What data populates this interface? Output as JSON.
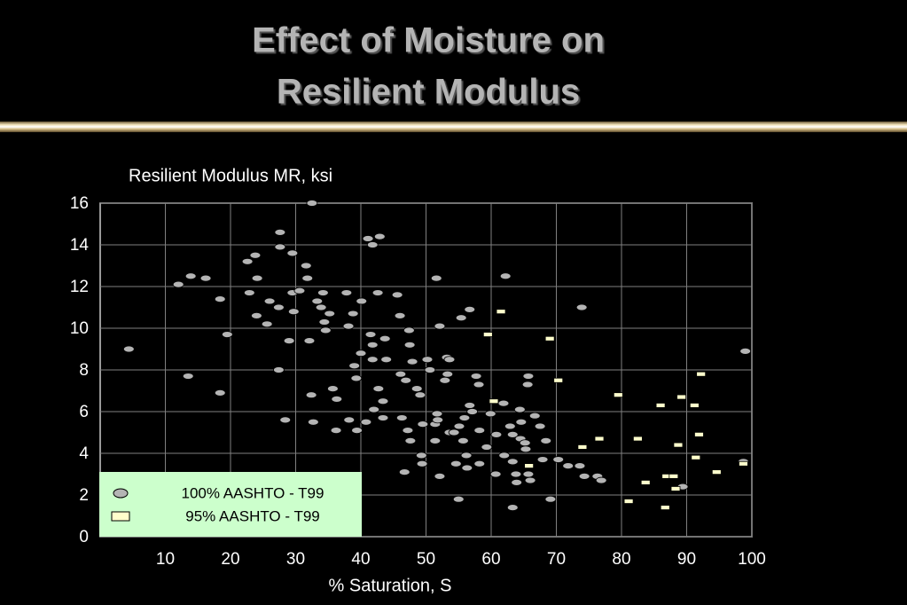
{
  "slide": {
    "title": [
      "Effect of Moisture on",
      "Resilient Modulus"
    ]
  },
  "chart_data": {
    "type": "scatter",
    "ylabel": "Resilient Modulus MR, ksi",
    "xlabel": "% Saturation, S",
    "xlim": [
      0,
      100
    ],
    "xticks": [
      10,
      20,
      30,
      40,
      50,
      60,
      70,
      80,
      90,
      100
    ],
    "ylim": [
      0,
      16
    ],
    "yticks": [
      0,
      2,
      4,
      6,
      8,
      10,
      12,
      14,
      16
    ],
    "grid": true,
    "legend": "lower left",
    "series": [
      {
        "name": "100% AASHTO - T99",
        "color": "#b4b4b4",
        "marker": "ellipse",
        "x": [
          4.4,
          12.0,
          13.9,
          16.2,
          13.5,
          18.4,
          18.4,
          19.5,
          22.6,
          23.8,
          24.1,
          22.9,
          24.0,
          25.6,
          26.0,
          27.4,
          27.6,
          27.6,
          29.5,
          27.4,
          28.4,
          29.0,
          29.5,
          29.7,
          30.6,
          31.6,
          31.8,
          32.5,
          32.1,
          32.4,
          32.7,
          33.3,
          33.9,
          34.2,
          34.4,
          34.6,
          35.2,
          35.7,
          36.3,
          36.2,
          37.8,
          38.1,
          38.2,
          38.8,
          39.0,
          39.3,
          39.4,
          40.1,
          40.0,
          40.8,
          41.1,
          41.8,
          42.9,
          41.5,
          41.8,
          41.8,
          42.0,
          42.6,
          42.7,
          43.4,
          43.7,
          43.9,
          43.4,
          45.6,
          46.0,
          46.1,
          46.3,
          46.7,
          46.9,
          47.2,
          47.4,
          47.5,
          47.6,
          47.9,
          48.6,
          49.1,
          49.5,
          49.3,
          49.4,
          50.2,
          50.6,
          51.4,
          51.4,
          51.6,
          51.7,
          51.8,
          52.1,
          52.1,
          52.9,
          53.2,
          53.3,
          53.6,
          53.6,
          54.3,
          54.6,
          55.0,
          55.1,
          55.4,
          55.7,
          55.9,
          56.2,
          56.3,
          56.7,
          56.7,
          57.1,
          57.7,
          58.1,
          58.2,
          58.2,
          59.3,
          59.9,
          60.7,
          60.8,
          62.2,
          61.9,
          62.0,
          62.9,
          63.3,
          63.3,
          63.3,
          63.8,
          63.9,
          64.4,
          64.5,
          64.6,
          65.2,
          65.3,
          65.6,
          65.7,
          65.7,
          66.0,
          66.7,
          67.5,
          67.9,
          68.4,
          69.1,
          70.3,
          71.8,
          73.6,
          73.9,
          74.3,
          76.3,
          76.9,
          89.4,
          98.7,
          99.0
        ],
        "values": [
          9.0,
          12.1,
          12.5,
          12.4,
          7.7,
          11.4,
          6.9,
          9.7,
          13.2,
          13.5,
          12.4,
          11.7,
          10.6,
          10.2,
          11.3,
          11.0,
          14.6,
          13.9,
          13.6,
          8.0,
          5.6,
          9.4,
          11.7,
          10.8,
          11.8,
          13.0,
          12.4,
          16.0,
          9.4,
          6.8,
          5.5,
          11.3,
          11.0,
          11.7,
          10.3,
          9.9,
          10.7,
          7.1,
          6.6,
          5.1,
          11.7,
          10.1,
          5.6,
          10.7,
          8.2,
          7.6,
          5.1,
          11.3,
          8.8,
          5.5,
          14.3,
          14.0,
          14.4,
          9.7,
          9.2,
          8.5,
          6.1,
          11.7,
          7.1,
          6.5,
          9.5,
          8.5,
          5.7,
          11.6,
          10.6,
          7.8,
          5.7,
          3.1,
          7.5,
          5.1,
          9.9,
          9.2,
          4.6,
          8.4,
          7.1,
          6.8,
          5.4,
          3.9,
          3.5,
          8.5,
          8.0,
          5.4,
          4.6,
          12.4,
          5.9,
          5.6,
          10.1,
          2.9,
          7.5,
          8.6,
          7.8,
          8.5,
          5.0,
          5.0,
          3.5,
          1.8,
          5.3,
          10.5,
          4.6,
          5.7,
          3.9,
          3.3,
          10.9,
          6.3,
          6.0,
          7.7,
          7.3,
          5.1,
          3.5,
          4.3,
          5.9,
          3.0,
          4.9,
          12.5,
          6.4,
          3.9,
          5.3,
          4.9,
          3.6,
          1.4,
          3.0,
          2.6,
          6.1,
          4.7,
          5.5,
          4.5,
          4.2,
          7.3,
          7.7,
          3.0,
          2.7,
          5.8,
          5.3,
          3.7,
          4.6,
          1.8,
          3.7,
          3.4,
          3.4,
          11.0,
          2.9,
          2.9,
          2.7,
          2.4,
          3.6,
          8.9
        ]
      },
      {
        "name": "95% AASHTO - T99",
        "color": "#ffffcc",
        "marker": "rect",
        "x": [
          61.5,
          59.5,
          69.0,
          70.3,
          60.4,
          65.8,
          74.0,
          76.6,
          79.5,
          81.1,
          82.5,
          83.7,
          86.0,
          86.7,
          86.9,
          88.0,
          88.3,
          88.7,
          89.2,
          91.2,
          91.4,
          91.9,
          92.2,
          94.6,
          98.7
        ],
        "values": [
          10.8,
          9.7,
          9.5,
          7.5,
          6.5,
          3.4,
          4.3,
          4.7,
          6.8,
          1.7,
          4.7,
          2.6,
          6.3,
          1.4,
          2.9,
          2.9,
          2.3,
          4.4,
          6.7,
          6.3,
          3.8,
          4.9,
          7.8,
          3.1,
          3.5
        ]
      }
    ]
  }
}
